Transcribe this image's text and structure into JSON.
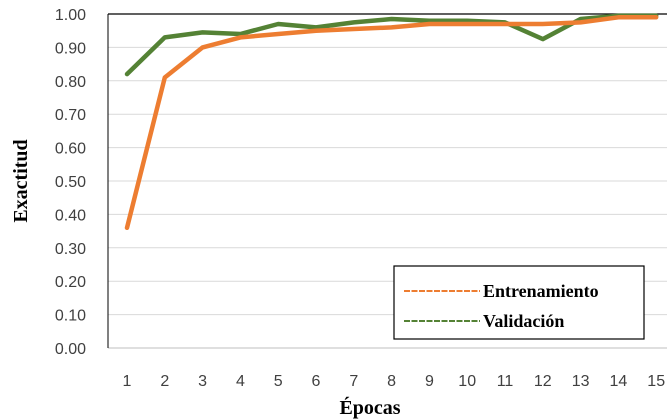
{
  "chart_data": {
    "type": "line",
    "xlabel": "Épocas",
    "ylabel": "Exactitud",
    "x": [
      1,
      2,
      3,
      4,
      5,
      6,
      7,
      8,
      9,
      10,
      11,
      12,
      13,
      14,
      15
    ],
    "ylim": [
      0,
      1
    ],
    "yticks": [
      "0.00",
      "0.10",
      "0.20",
      "0.30",
      "0.40",
      "0.50",
      "0.60",
      "0.70",
      "0.80",
      "0.90",
      "1.00"
    ],
    "grid": true,
    "legend_position": "bottom-right",
    "series": [
      {
        "name": "Entrenamiento",
        "color": "#ED7D31",
        "values": [
          0.36,
          0.81,
          0.9,
          0.93,
          0.94,
          0.95,
          0.955,
          0.96,
          0.97,
          0.97,
          0.97,
          0.97,
          0.975,
          0.99,
          0.99
        ]
      },
      {
        "name": "Validación",
        "color": "#548235",
        "values": [
          0.82,
          0.93,
          0.945,
          0.94,
          0.97,
          0.96,
          0.975,
          0.985,
          0.98,
          0.98,
          0.975,
          0.925,
          0.985,
          0.995,
          0.995
        ]
      }
    ]
  }
}
